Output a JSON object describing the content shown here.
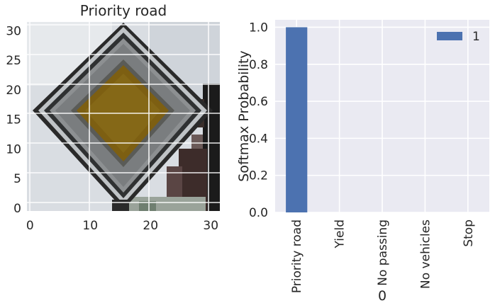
{
  "chart_data": [
    {
      "type": "image",
      "title": "Priority road",
      "xticks": [
        "0",
        "10",
        "20",
        "30"
      ],
      "yticks": [
        "0",
        "5",
        "10",
        "15",
        "20",
        "25",
        "30"
      ],
      "xlim": [
        -0.5,
        31.5
      ],
      "ylim": [
        31.5,
        -0.5
      ],
      "grid": true
    },
    {
      "type": "bar",
      "categories": [
        "Priority road",
        "Yield",
        "No passing",
        "No vehicles",
        "Stop"
      ],
      "series": [
        {
          "name": "1",
          "values": [
            1.0,
            0.0,
            0.0,
            0.0,
            0.0
          ],
          "color": "#4c72b0"
        }
      ],
      "title": "",
      "xlabel": "0",
      "ylabel": "Softmax Probability",
      "ylim": [
        0,
        1.04
      ],
      "yticks": [
        "0.0",
        "0.2",
        "0.4",
        "0.6",
        "0.8",
        "1.0"
      ],
      "grid": true,
      "legend": "top-right",
      "background": "#eaeaf2"
    }
  ]
}
